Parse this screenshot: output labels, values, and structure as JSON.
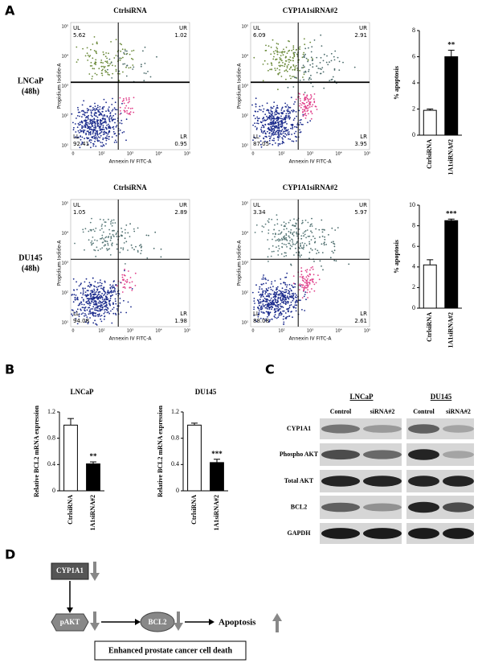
{
  "figure": {
    "panel_labels": [
      "A",
      "B",
      "C",
      "D"
    ],
    "flow_cytometry": {
      "x_label": "Annexin IV FITC-A",
      "y_label": "Propidium Iodide-A",
      "x_tick_labels": [
        "0",
        "10²",
        "10³",
        "10⁴",
        "10⁵"
      ],
      "y_tick_labels": [
        "10¹",
        "10²",
        "10³",
        "10⁴",
        "10⁵"
      ],
      "rows": [
        {
          "label_lines": [
            "LNCaP",
            "(48h)"
          ],
          "plots": [
            {
              "title": "CtrlsiRNA",
              "quadrants": [
                {
                  "name": "UL",
                  "value": 5.62
                },
                {
                  "name": "UR",
                  "value": 1.02
                },
                {
                  "name": "LL",
                  "value": 92.41
                },
                {
                  "name": "LR",
                  "value": 0.95
                }
              ]
            },
            {
              "title": "CYP1A1siRNA#2",
              "quadrants": [
                {
                  "name": "UL",
                  "value": 6.09
                },
                {
                  "name": "UR",
                  "value": 2.91
                },
                {
                  "name": "LL",
                  "value": 87.05
                },
                {
                  "name": "LR",
                  "value": 3.95
                }
              ]
            }
          ]
        },
        {
          "label_lines": [
            "DU145",
            "(48h)"
          ],
          "plots": [
            {
              "title": "CtrlsiRNA",
              "quadrants": [
                {
                  "name": "UL",
                  "value": 1.05
                },
                {
                  "name": "UR",
                  "value": 2.89
                },
                {
                  "name": "LL",
                  "value": 94.08
                },
                {
                  "name": "LR",
                  "value": 1.98
                }
              ]
            },
            {
              "title": "CYP1A1siRNA#2",
              "quadrants": [
                {
                  "name": "UL",
                  "value": 3.34
                },
                {
                  "name": "UR",
                  "value": 5.97
                },
                {
                  "name": "LL",
                  "value": 88.08
                },
                {
                  "name": "LR",
                  "value": 2.61
                }
              ]
            }
          ]
        }
      ]
    },
    "western_blot": {
      "cell_lines": [
        "LNCaP",
        "DU145"
      ],
      "lanes": [
        "Control",
        "siRNA#2"
      ],
      "proteins": [
        "CYP1A1",
        "Phospho AKT",
        "Total AKT",
        "BCL2",
        "GAPDH"
      ]
    },
    "diagram": {
      "nodes": [
        "CYP1A1",
        "pAKT",
        "BCL2",
        "Apoptosis"
      ],
      "outcome": "Enhanced prostate cancer cell death"
    }
  },
  "chart_data": [
    {
      "type": "bar",
      "y_label": "% apoptosis",
      "categories": [
        "CtrlsiRNA",
        "1A1siRNA#2"
      ],
      "values": [
        1.9,
        6.0
      ],
      "errors": [
        0.1,
        0.5
      ],
      "colors": [
        "#ffffff",
        "#000000"
      ],
      "significance_label": "**",
      "ylim": [
        0,
        8
      ],
      "yticks": [
        0,
        2,
        4,
        6,
        8
      ]
    },
    {
      "type": "bar",
      "y_label": "% apoptosis",
      "categories": [
        "CtrlsiRNA",
        "1A1siRNA#2"
      ],
      "values": [
        4.2,
        8.5
      ],
      "errors": [
        0.5,
        0.15
      ],
      "colors": [
        "#ffffff",
        "#000000"
      ],
      "significance_label": "***",
      "ylim": [
        0,
        10
      ],
      "yticks": [
        0,
        2,
        4,
        6,
        8,
        10
      ]
    },
    {
      "type": "bar",
      "title": "LNCaP",
      "y_label": "Relative BCL2 mRNA expression",
      "categories": [
        "CtrlsiRNA",
        "1A1siRNA#2"
      ],
      "values": [
        1.0,
        0.41
      ],
      "errors": [
        0.1,
        0.03
      ],
      "colors": [
        "#ffffff",
        "#000000"
      ],
      "significance_label": "**",
      "ylim": [
        0,
        1.2
      ],
      "yticks": [
        0,
        0.4,
        0.8,
        1.2
      ]
    },
    {
      "type": "bar",
      "title": "DU145",
      "y_label": "Relative BCL2 mRNA expression",
      "categories": [
        "CtrlsiRNA",
        "1A1siRNA#2"
      ],
      "values": [
        1.0,
        0.43
      ],
      "errors": [
        0.03,
        0.05
      ],
      "colors": [
        "#ffffff",
        "#000000"
      ],
      "significance_label": "***",
      "ylim": [
        0,
        1.2
      ],
      "yticks": [
        0,
        0.4,
        0.8,
        1.2
      ]
    }
  ]
}
